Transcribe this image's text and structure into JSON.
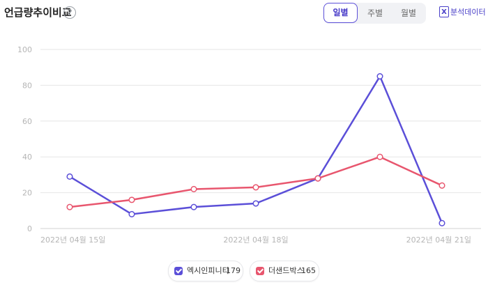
{
  "header": {
    "title": "언급량추이비교",
    "help_icon": "?",
    "periods": [
      "일별",
      "주별",
      "월별"
    ],
    "active_period": "일별",
    "export_label": "분석데이터",
    "export_icon": "X"
  },
  "colors": {
    "series1": "#5b4fd8",
    "series2": "#e8566e",
    "grid": "#e6e6e6",
    "axis_text": "#b5b5b5"
  },
  "chart_data": {
    "type": "line",
    "x": [
      "2022-04-15",
      "2022-04-16",
      "2022-04-17",
      "2022-04-18",
      "2022-04-19",
      "2022-04-20",
      "2022-04-21"
    ],
    "x_tick_labels": [
      "2022년 04월 15일",
      "2022년 04월 18일",
      "2022년 04월 21일"
    ],
    "ylim": [
      0,
      100
    ],
    "y_ticks": [
      0,
      20,
      40,
      60,
      80,
      100
    ],
    "grid": true,
    "legend_position": "bottom",
    "series": [
      {
        "name": "엑시인피니티",
        "count": "179",
        "values": [
          29,
          8,
          12,
          14,
          28,
          85,
          3
        ]
      },
      {
        "name": "더샌드박스",
        "count": "165",
        "values": [
          12,
          16,
          22,
          23,
          28,
          40,
          24
        ]
      }
    ]
  }
}
